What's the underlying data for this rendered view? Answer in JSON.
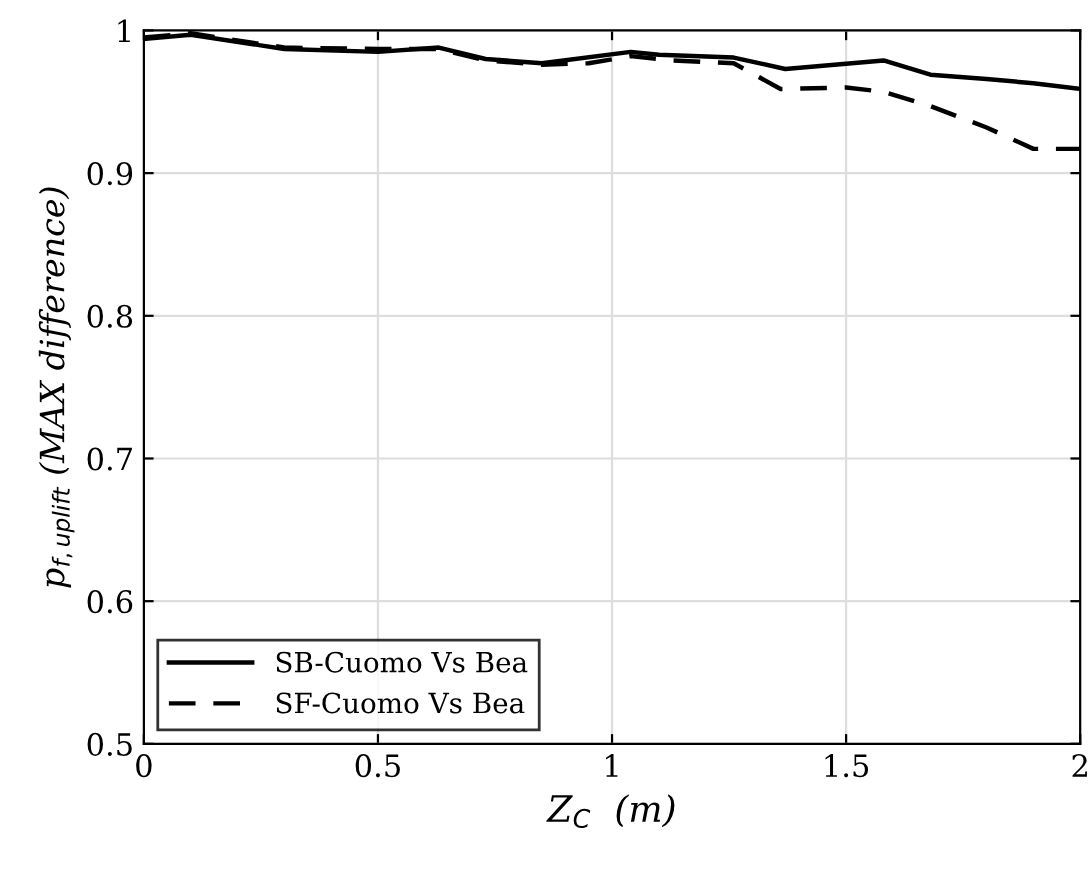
{
  "chart_data": {
    "type": "line",
    "xlabel": "Z$_{C}$  (m)",
    "ylabel": "p$_{f,uplift}$ (MAX difference)",
    "xlim": [
      0,
      2
    ],
    "ylim": [
      0.5,
      1
    ],
    "xticks": [
      0,
      0.5,
      1,
      1.5,
      2
    ],
    "yticks": [
      0.5,
      0.6,
      0.7,
      0.8,
      0.9,
      1
    ],
    "grid": true,
    "legend": "bottom left",
    "series": [
      {
        "name": "SB-Cuomo Vs Bea",
        "color": "#000000",
        "line_style": "solid",
        "x": [
          0,
          0.1,
          0.3,
          0.5,
          0.63,
          0.73,
          0.85,
          1.04,
          1.1,
          1.26,
          1.37,
          1.58,
          1.68,
          1.8,
          1.9,
          2.0
        ],
        "values": [
          0.994,
          0.997,
          0.987,
          0.985,
          0.988,
          0.98,
          0.977,
          0.985,
          0.983,
          0.981,
          0.973,
          0.979,
          0.969,
          0.966,
          0.963,
          0.959
        ]
      },
      {
        "name": "SF-Cuomo Vs Bea",
        "color": "#000000",
        "line_style": "dashed",
        "x": [
          0,
          0.1,
          0.3,
          0.5,
          0.63,
          0.73,
          0.85,
          0.95,
          1.04,
          1.13,
          1.26,
          1.36,
          1.5,
          1.58,
          1.68,
          1.8,
          1.9,
          2.0
        ],
        "values": [
          0.995,
          0.998,
          0.988,
          0.987,
          0.987,
          0.979,
          0.976,
          0.977,
          0.982,
          0.979,
          0.977,
          0.959,
          0.96,
          0.957,
          0.947,
          0.932,
          0.917,
          0.917
        ]
      }
    ]
  }
}
